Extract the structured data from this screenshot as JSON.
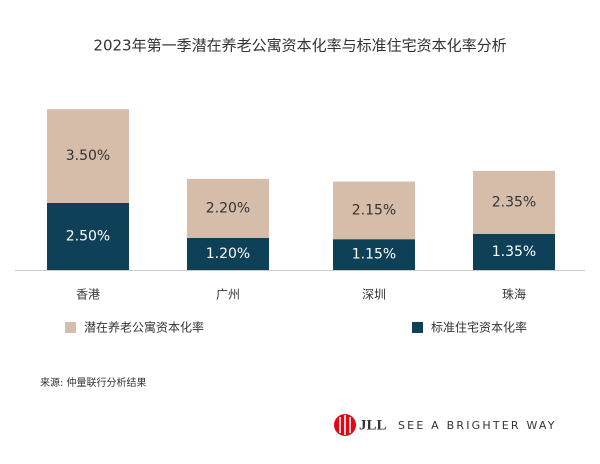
{
  "chart_data": {
    "type": "stacked-bar",
    "title": "2023年第一季潜在养老公寓资本化率与标准住宅资本化率分析",
    "categories": [
      "香港",
      "广州",
      "深圳",
      "珠海"
    ],
    "series": [
      {
        "name": "潜在养老公寓资本化率",
        "color": "#d5bdaa",
        "values": [
          3.5,
          2.2,
          2.15,
          2.35
        ],
        "value_labels": [
          "3.50%",
          "2.20%",
          "2.15%",
          "2.35%"
        ]
      },
      {
        "name": "标准住宅资本化率",
        "color": "#0e4058",
        "values": [
          2.5,
          1.2,
          1.15,
          1.35
        ],
        "value_labels": [
          "2.50%",
          "1.20%",
          "1.15%",
          "1.35%"
        ]
      }
    ]
  },
  "footer": {
    "source": "来源: 仲量联行分析结果",
    "logo": "JLL",
    "tagline": "SEE A BRIGHTER WAY"
  }
}
